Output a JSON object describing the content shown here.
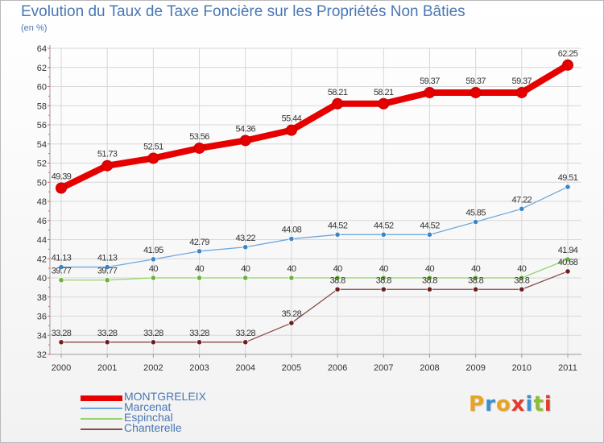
{
  "header": {
    "title": "Evolution du Taux de Taxe Foncière sur les Propriétés Non Bâties",
    "subtitle": "(en %)"
  },
  "logo": {
    "text": "Proxiti",
    "colors": [
      "#e8a321",
      "#3b8fd0",
      "#e8a321",
      "#e23b2b",
      "#3b8fd0",
      "#8cbd35",
      "#e23b2b"
    ]
  },
  "chart_data": {
    "type": "line",
    "title": "Evolution du Taux de Taxe Foncière sur les Propriétés Non Bâties",
    "ylabel": "(en %)",
    "xlabel": "",
    "x": [
      "2000",
      "2001",
      "2002",
      "2003",
      "2004",
      "2005",
      "2006",
      "2007",
      "2008",
      "2009",
      "2010",
      "2011"
    ],
    "ylim": [
      32,
      64
    ],
    "yticks": [
      32,
      34,
      36,
      38,
      40,
      42,
      44,
      46,
      48,
      50,
      52,
      54,
      56,
      58,
      60,
      62,
      64
    ],
    "grid": true,
    "legend_position": "bottom-left",
    "series": [
      {
        "name": "MONTGRELEIX",
        "color": "#e60000",
        "emphasis": "thick",
        "values": [
          49.39,
          51.73,
          52.51,
          53.56,
          54.36,
          55.44,
          58.21,
          58.21,
          59.37,
          59.37,
          59.37,
          62.25
        ],
        "labels": [
          "49.39",
          "51.73",
          "52.51",
          "53.56",
          "54.36",
          "55.44",
          "58.21",
          "58.21",
          "59.37",
          "59.37",
          "59.37",
          "62.25"
        ]
      },
      {
        "name": "Marcenat",
        "color": "#6fa8dc",
        "marker_color": "#3d85c6",
        "values": [
          41.13,
          41.13,
          41.95,
          42.79,
          43.22,
          44.08,
          44.52,
          44.52,
          44.52,
          45.85,
          47.22,
          49.51
        ],
        "labels": [
          "41.13",
          "41.13",
          "41.95",
          "42.79",
          "43.22",
          "44.08",
          "44.52",
          "44.52",
          "44.52",
          "45.85",
          "47.22",
          "49.51"
        ]
      },
      {
        "name": "Espinchal",
        "color": "#93d36b",
        "marker_color": "#6ab23a",
        "values": [
          39.77,
          39.77,
          40,
          40,
          40,
          40,
          40,
          40,
          40,
          40,
          40,
          41.94
        ],
        "labels": [
          "39.77",
          "39.77",
          "40",
          "40",
          "40",
          "40",
          "40",
          "40",
          "40",
          "40",
          "40",
          "41.94"
        ]
      },
      {
        "name": "Chanterelle",
        "color": "#8b4a4a",
        "marker_color": "#6b1f1f",
        "values": [
          33.28,
          33.28,
          33.28,
          33.28,
          33.28,
          35.28,
          38.8,
          38.8,
          38.8,
          38.8,
          38.8,
          40.68
        ],
        "labels": [
          "33.28",
          "33.28",
          "33.28",
          "33.28",
          "33.28",
          "35.28",
          "38.8",
          "38.8",
          "38.8",
          "38.8",
          "38.8",
          "40.68"
        ]
      }
    ]
  }
}
